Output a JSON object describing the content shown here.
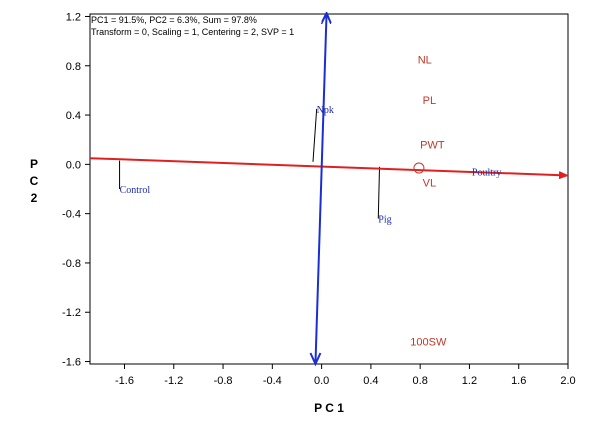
{
  "chart_data": {
    "type": "scatter",
    "info_lines": [
      "PC1 = 91.5%, PC2 = 6.3%, Sum = 97.8%",
      "Transform = 0, Scaling = 1, Centering = 2, SVP = 1"
    ],
    "xlabel": "P C 1",
    "ylabel": [
      "P",
      "C",
      "2"
    ],
    "xlim": [
      -1.88,
      2.0
    ],
    "ylim": [
      -1.62,
      1.22
    ],
    "x_ticks": [
      -1.6,
      -1.2,
      -0.8,
      -0.4,
      0.0,
      0.4,
      0.8,
      1.2,
      1.6,
      2.0
    ],
    "x_tick_labels": [
      "-1.6",
      "-1.2",
      "-0.8",
      "-0.4",
      "0.0",
      "0.4",
      "0.8",
      "1.2",
      "1.6",
      "2.0"
    ],
    "y_ticks": [
      1.2,
      0.8,
      0.4,
      0.0,
      -0.4,
      -0.8,
      -1.2,
      -1.6
    ],
    "y_tick_labels": [
      "1.2",
      "0.8",
      "0.4",
      "0.0",
      "-0.4",
      "-0.8",
      "-1.2",
      "-1.6"
    ],
    "colors": {
      "trait": "#c0392b",
      "genotype": "#1f2fa8",
      "average_environment_axis": "#e02020",
      "ordinate_axis": "#1a2ed6",
      "projection": "#000000",
      "frame": "#000000"
    },
    "traits": [
      {
        "label": "NL",
        "x": 0.78,
        "y": 0.82
      },
      {
        "label": "PL",
        "x": 0.82,
        "y": 0.49
      },
      {
        "label": "PWT",
        "x": 0.8,
        "y": 0.13
      },
      {
        "label": "VL",
        "x": 0.82,
        "y": -0.18
      },
      {
        "label": "100SW",
        "x": 0.72,
        "y": -1.47
      }
    ],
    "genotypes": [
      {
        "label": "Control",
        "x": -1.64,
        "y": -0.2,
        "ax": -1.64,
        "ay": 0.03
      },
      {
        "label": "Npk",
        "x": -0.04,
        "y": 0.45,
        "ax": -0.04,
        "ay": 0.45
      },
      {
        "label": "Pig",
        "x": 0.46,
        "y": -0.44,
        "ax": 0.47,
        "ay": -0.02
      },
      {
        "label": "Poultry",
        "x": 1.22,
        "y": -0.06,
        "ax": 1.22,
        "ay": -0.06
      }
    ],
    "average_environment_point": {
      "x": 0.79,
      "y": -0.03
    },
    "average_environment_axis": {
      "start": [
        -1.88,
        0.05
      ],
      "end": [
        2.0,
        -0.09
      ]
    },
    "ordinate_axis": {
      "start": [
        0.04,
        1.22
      ],
      "end": [
        -0.05,
        -1.62
      ]
    }
  }
}
